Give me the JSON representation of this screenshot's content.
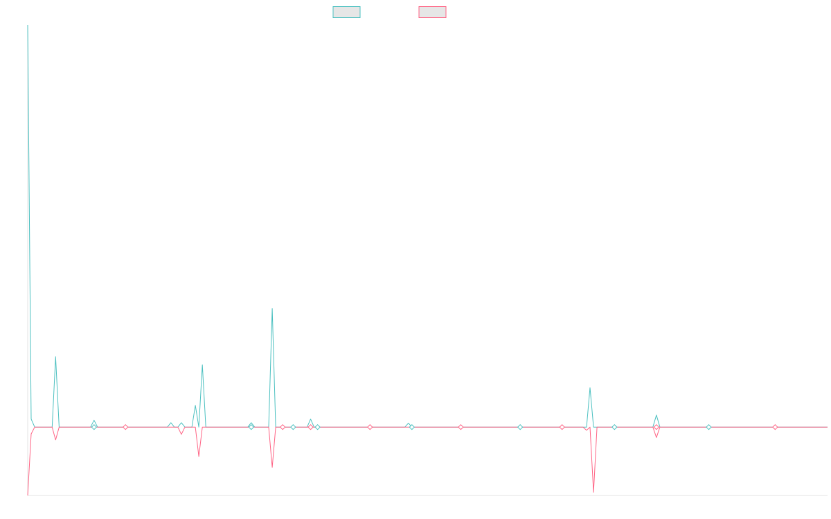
{
  "chart_data": {
    "type": "line",
    "title": "",
    "xlabel": "",
    "ylabel": "",
    "grid": false,
    "legend": {
      "placement": "top-center"
    },
    "series": [
      {
        "color": "#4bc0c0",
        "fill": "#e6e6e6",
        "points": [
          [
            0,
            100
          ],
          [
            1,
            2
          ],
          [
            2,
            0
          ],
          [
            7,
            0
          ],
          [
            8,
            17.5
          ],
          [
            9,
            0
          ],
          [
            18,
            0
          ],
          [
            19,
            1.7
          ],
          [
            20,
            0
          ],
          [
            40,
            0
          ],
          [
            41,
            1.1
          ],
          [
            42,
            0
          ],
          [
            43,
            0
          ],
          [
            44,
            1.1
          ],
          [
            45,
            0
          ],
          [
            47,
            0
          ],
          [
            48,
            5.4
          ],
          [
            49,
            0
          ],
          [
            50,
            15.5
          ],
          [
            51,
            0
          ],
          [
            63,
            0
          ],
          [
            64,
            1.1
          ],
          [
            65,
            0
          ],
          [
            69,
            0
          ],
          [
            70,
            29.5
          ],
          [
            71,
            0
          ],
          [
            80,
            0
          ],
          [
            81,
            2.0
          ],
          [
            82,
            0
          ],
          [
            108,
            0
          ],
          [
            109,
            1.0
          ],
          [
            110,
            0
          ],
          [
            160,
            0
          ],
          [
            161,
            9.8
          ],
          [
            162,
            0
          ],
          [
            179,
            0
          ],
          [
            180,
            3.0
          ],
          [
            181,
            0
          ],
          [
            229,
            0
          ]
        ]
      },
      {
        "color": "#ff6384",
        "fill": "#e6e6e6",
        "points": [
          [
            0,
            -17
          ],
          [
            1,
            -1.7
          ],
          [
            2,
            0
          ],
          [
            7,
            0
          ],
          [
            8,
            -3.2
          ],
          [
            9,
            0
          ],
          [
            43,
            0
          ],
          [
            44,
            -1.8
          ],
          [
            45,
            0
          ],
          [
            48,
            0
          ],
          [
            49,
            -7.3
          ],
          [
            50,
            0
          ],
          [
            69,
            0
          ],
          [
            70,
            -10
          ],
          [
            71,
            0
          ],
          [
            159,
            0
          ],
          [
            160,
            -0.8
          ],
          [
            161,
            0
          ],
          [
            162,
            -16.2
          ],
          [
            163,
            0
          ],
          [
            179,
            0
          ],
          [
            180,
            -2.6
          ],
          [
            181,
            0
          ],
          [
            229,
            0
          ]
        ]
      }
    ],
    "markers": [
      19,
      28,
      64,
      73,
      76,
      81,
      83,
      98,
      110,
      124,
      141,
      153,
      168,
      180,
      195,
      214
    ],
    "x_range": [
      0,
      229
    ],
    "ylim": [
      -17,
      100
    ]
  }
}
